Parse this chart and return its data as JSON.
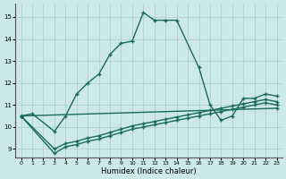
{
  "background_color": "#cce8e8",
  "grid_color": "#aacccc",
  "line_color": "#1a6b5a",
  "xlabel": "Humidex (Indice chaleur)",
  "xlim": [
    -0.5,
    23.5
  ],
  "ylim": [
    8.6,
    15.6
  ],
  "xticks": [
    0,
    1,
    2,
    3,
    4,
    5,
    6,
    7,
    8,
    9,
    10,
    11,
    12,
    13,
    14,
    15,
    16,
    17,
    18,
    19,
    20,
    21,
    22,
    23
  ],
  "yticks": [
    9,
    10,
    11,
    12,
    13,
    14,
    15
  ],
  "curve1_x": [
    0,
    1,
    3,
    4,
    5,
    6,
    7,
    8,
    9,
    10,
    11,
    12,
    13,
    14,
    16,
    17,
    18,
    19,
    20,
    21,
    22,
    23
  ],
  "curve1_y": [
    10.5,
    10.6,
    9.8,
    10.5,
    11.5,
    12.0,
    12.4,
    13.3,
    13.8,
    13.9,
    15.2,
    14.85,
    14.85,
    14.85,
    12.7,
    11.0,
    10.3,
    10.5,
    11.3,
    11.3,
    11.5,
    11.4
  ],
  "curve2_x": [
    0,
    3,
    4,
    5,
    6,
    7,
    8,
    9,
    10,
    11,
    12,
    13,
    14,
    15,
    16,
    17,
    18,
    19,
    20,
    21,
    22,
    23
  ],
  "curve2_y": [
    10.5,
    8.8,
    9.1,
    9.2,
    9.35,
    9.45,
    9.6,
    9.75,
    9.9,
    10.0,
    10.1,
    10.2,
    10.3,
    10.4,
    10.5,
    10.6,
    10.7,
    10.8,
    10.9,
    11.0,
    11.1,
    11.0
  ],
  "curve3_x": [
    0,
    3,
    4,
    5,
    6,
    7,
    8,
    9,
    10,
    11,
    12,
    13,
    14,
    15,
    16,
    17,
    18,
    19,
    20,
    21,
    22,
    23
  ],
  "curve3_y": [
    10.5,
    9.0,
    9.25,
    9.35,
    9.5,
    9.6,
    9.75,
    9.9,
    10.05,
    10.15,
    10.25,
    10.35,
    10.45,
    10.55,
    10.65,
    10.75,
    10.85,
    10.95,
    11.05,
    11.15,
    11.25,
    11.15
  ],
  "curve4_x": [
    0,
    23
  ],
  "curve4_y": [
    10.5,
    10.85
  ]
}
